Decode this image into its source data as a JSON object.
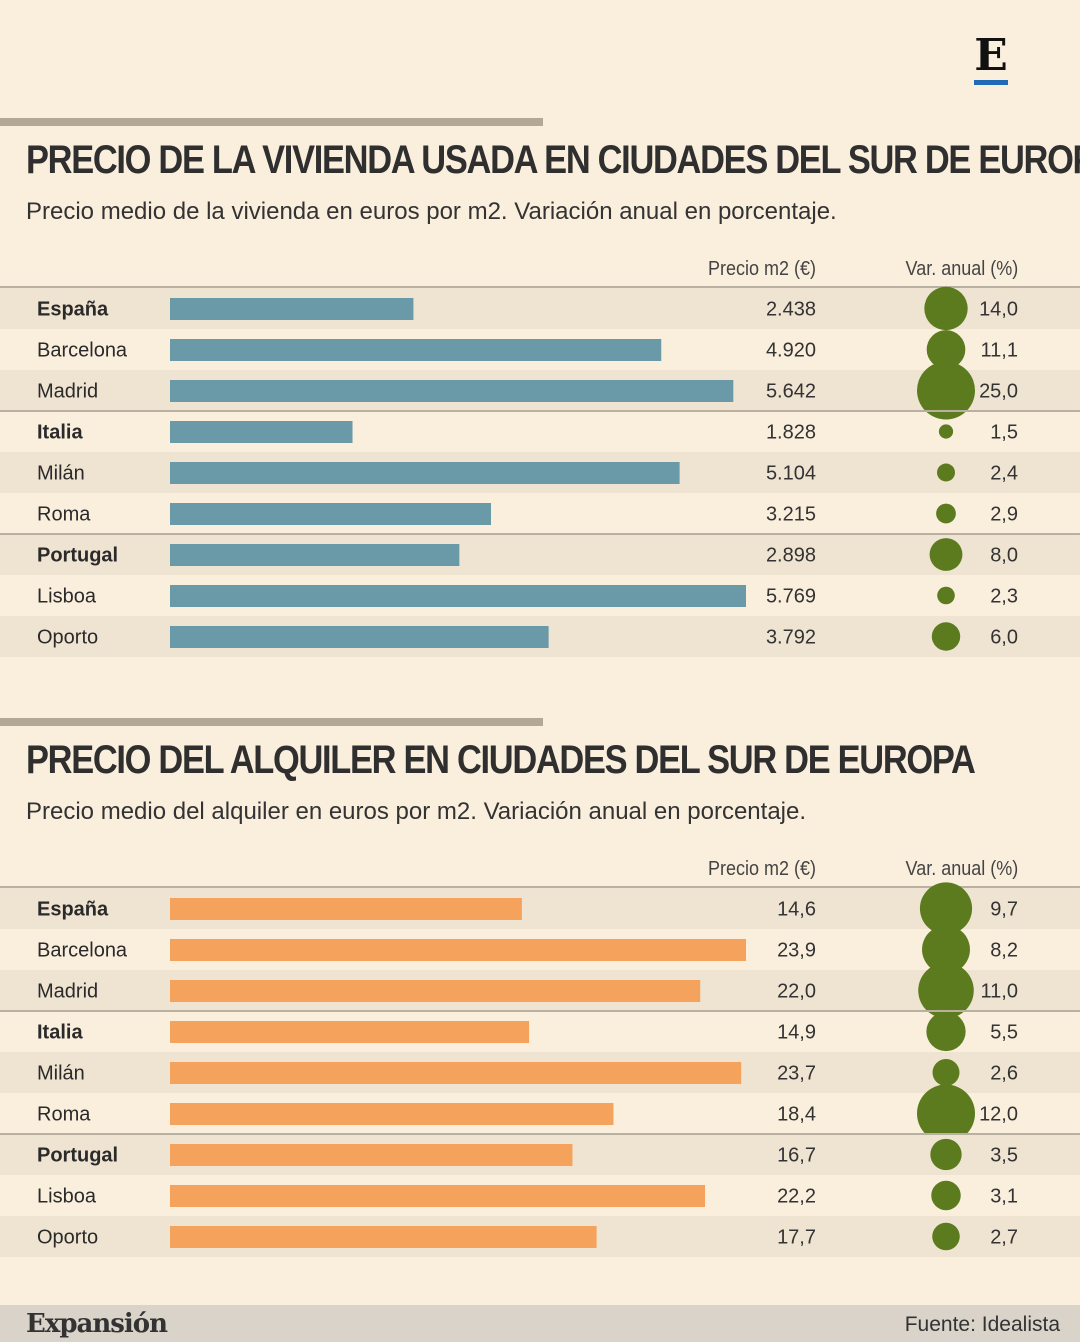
{
  "logo": "E",
  "column_headers": {
    "price": "Precio m2 (€)",
    "var": "Var. anual (%)"
  },
  "colors": {
    "bar_sale": "#6a9aa8",
    "bar_rent": "#f4a25c",
    "bubble": "#5b7b1e",
    "row_band": "#efe3d1",
    "rule": "#b3a795"
  },
  "footer": {
    "brand": "Expansión",
    "source": "Fuente: Idealista"
  },
  "chart_data": [
    {
      "type": "bar",
      "title": "PRECIO DE LA VIVIENDA USADA EN CIUDADES DEL SUR DE EUROPA",
      "subtitle": "Precio medio de la vivienda en euros por m2. Variación anual en porcentaje.",
      "categories": [
        "España",
        "Barcelona",
        "Madrid",
        "Italia",
        "Milán",
        "Roma",
        "Portugal",
        "Lisboa",
        "Oporto"
      ],
      "country_rows": [
        "España",
        "Italia",
        "Portugal"
      ],
      "series": [
        {
          "name": "Precio m2 (€)",
          "values": [
            2438,
            4920,
            5642,
            1828,
            5104,
            3215,
            2898,
            5769,
            3792
          ],
          "labels": [
            "2.438",
            "4.920",
            "5.642",
            "1.828",
            "5.104",
            "3.215",
            "2.898",
            "5.769",
            "3.792"
          ]
        },
        {
          "name": "Var. anual (%)",
          "values": [
            14.0,
            11.1,
            25.0,
            1.5,
            2.4,
            2.9,
            8.0,
            2.3,
            6.0
          ],
          "labels": [
            "14,0",
            "11,1",
            "25,0",
            "1,5",
            "2,4",
            "2,9",
            "8,0",
            "2,3",
            "6,0"
          ]
        }
      ],
      "xlim": [
        0,
        5769
      ]
    },
    {
      "type": "bar",
      "title": "PRECIO DEL ALQUILER EN CIUDADES DEL SUR DE EUROPA",
      "subtitle": "Precio medio del alquiler en euros por m2. Variación anual en porcentaje.",
      "categories": [
        "España",
        "Barcelona",
        "Madrid",
        "Italia",
        "Milán",
        "Roma",
        "Portugal",
        "Lisboa",
        "Oporto"
      ],
      "country_rows": [
        "España",
        "Italia",
        "Portugal"
      ],
      "series": [
        {
          "name": "Precio m2 (€)",
          "values": [
            14.6,
            23.9,
            22.0,
            14.9,
            23.7,
            18.4,
            16.7,
            22.2,
            17.7
          ],
          "labels": [
            "14,6",
            "23,9",
            "22,0",
            "14,9",
            "23,7",
            "18,4",
            "16,7",
            "22,2",
            "17,7"
          ]
        },
        {
          "name": "Var. anual (%)",
          "values": [
            9.7,
            8.2,
            11.0,
            5.5,
            2.6,
            12.0,
            3.5,
            3.1,
            2.7
          ],
          "labels": [
            "9,7",
            "8,2",
            "11,0",
            "5,5",
            "2,6",
            "12,0",
            "3,5",
            "3,1",
            "2,7"
          ]
        }
      ],
      "xlim": [
        0,
        23.9
      ]
    }
  ]
}
